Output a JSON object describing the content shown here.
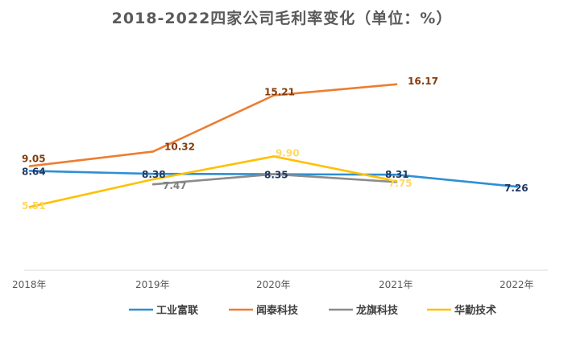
{
  "chart_data": {
    "type": "line",
    "title": "2018-2022四家公司毛利率变化（单位：%）",
    "categories": [
      "2018年",
      "2019年",
      "2020年",
      "2021年",
      "2022年"
    ],
    "xlabel": "",
    "ylabel": "",
    "ylim": [
      0,
      20
    ],
    "grid": false,
    "legend_position": "bottom",
    "series": [
      {
        "name": "工业富联",
        "color": "#2E8FD3",
        "label_color": "#1F3864",
        "values": [
          8.64,
          8.38,
          8.35,
          8.31,
          7.26
        ]
      },
      {
        "name": "闻泰科技",
        "color": "#ED7D31",
        "label_color": "#843C0C",
        "values": [
          9.05,
          10.32,
          15.21,
          16.17,
          null
        ]
      },
      {
        "name": "龙旗科技",
        "color": "#8C8C8C",
        "label_color": "#7F7F7F",
        "values": [
          null,
          7.47,
          8.35,
          7.67,
          null
        ]
      },
      {
        "name": "华勤技术",
        "color": "#FFC000",
        "label_color": "#FFD966",
        "values": [
          5.51,
          7.9,
          9.9,
          7.75,
          null
        ]
      }
    ],
    "data_labels": [
      {
        "series": 0,
        "index": 0,
        "text": "8.64"
      },
      {
        "series": 0,
        "index": 1,
        "text": "8.38"
      },
      {
        "series": 0,
        "index": 2,
        "text": "8.35"
      },
      {
        "series": 0,
        "index": 3,
        "text": "8.31"
      },
      {
        "series": 0,
        "index": 4,
        "text": "7.26"
      },
      {
        "series": 1,
        "index": 0,
        "text": "9.05"
      },
      {
        "series": 1,
        "index": 1,
        "text": "10.32"
      },
      {
        "series": 1,
        "index": 2,
        "text": "15.21"
      },
      {
        "series": 1,
        "index": 3,
        "text": "16.17"
      },
      {
        "series": 2,
        "index": 1,
        "text": "7.47"
      },
      {
        "series": 3,
        "index": 0,
        "text": "5.51"
      },
      {
        "series": 3,
        "index": 2,
        "text": "9.90"
      },
      {
        "series": 3,
        "index": 3,
        "text": "7.75"
      }
    ]
  }
}
